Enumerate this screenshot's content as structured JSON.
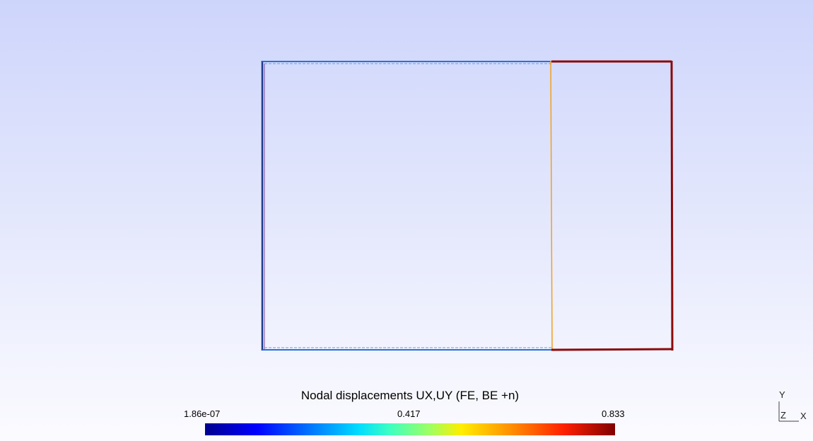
{
  "legend": {
    "title": "Nodal displacements UX,UY (FE, BE +n)",
    "min_label": "1.86e-07",
    "mid_label": "0.417",
    "max_label": "0.833",
    "colormap": "jet"
  },
  "axes": {
    "y": "Y",
    "z": "Z",
    "x": "X"
  },
  "colors": {
    "left_edge": "#1c3a8c",
    "top_bottom_left": "#2a6fd6",
    "inner_line": "#f0a020",
    "right_part": "#8b0a0a"
  }
}
